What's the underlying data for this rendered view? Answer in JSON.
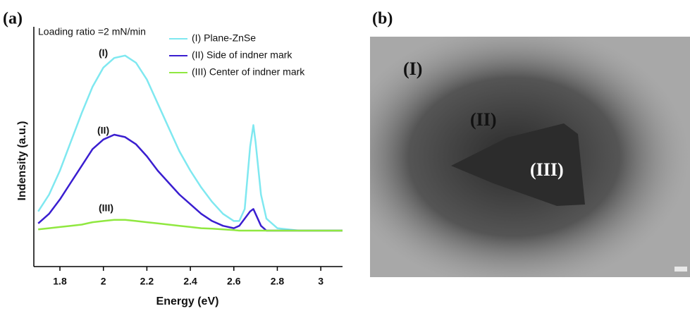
{
  "chart_data": {
    "type": "line",
    "panel_label": "(a)",
    "subtitle": "Loading ratio =2 mN/min",
    "xlabel": "Energy (eV)",
    "ylabel": "Indensity (a.u.)",
    "x": [
      1.7,
      1.75,
      1.8,
      1.85,
      1.9,
      1.95,
      2.0,
      2.05,
      2.1,
      2.15,
      2.2,
      2.25,
      2.3,
      2.35,
      2.4,
      2.45,
      2.5,
      2.55,
      2.6,
      2.625,
      2.65,
      2.675,
      2.69,
      2.7,
      2.725,
      2.75,
      2.8,
      2.9,
      3.0,
      3.1
    ],
    "xlim": [
      1.68,
      3.1
    ],
    "xticks": [
      1.8,
      2.0,
      2.2,
      2.4,
      2.6,
      2.8,
      3.0
    ],
    "ylim": [
      0,
      100
    ],
    "series": [
      {
        "name": "(I) Plane-ZnSe",
        "color": "#7fe8f0",
        "values": [
          23,
          30,
          40,
          52,
          64,
          75,
          83,
          87,
          88,
          85,
          78,
          68,
          58,
          48,
          40,
          33,
          27,
          22,
          19,
          19,
          24,
          50,
          59,
          52,
          30,
          20,
          16,
          15,
          15,
          15
        ]
      },
      {
        "name": "(II) Side of indner mark",
        "color": "#3a1ed0",
        "values": [
          18,
          22,
          28,
          35,
          42,
          49,
          53,
          55,
          54,
          51,
          46,
          40,
          35,
          30,
          26,
          22,
          19,
          17,
          16,
          17,
          20,
          23,
          24,
          22,
          17,
          15,
          15,
          15,
          15,
          15
        ]
      },
      {
        "name": "(III) Center of indner mark",
        "color": "#90e840",
        "values": [
          15.5,
          16,
          16.5,
          17,
          17.5,
          18.5,
          19,
          19.5,
          19.5,
          19,
          18.5,
          18,
          17.5,
          17,
          16.5,
          16,
          15.8,
          15.5,
          15.2,
          15,
          15,
          15,
          15,
          15,
          15,
          15,
          15,
          15,
          15,
          15
        ]
      }
    ],
    "annotations": [
      "(I)",
      "(II)",
      "(III)"
    ]
  },
  "panel_b": {
    "panel_label": "(b)",
    "labels": [
      "(I)",
      "(II)",
      "(III)"
    ]
  }
}
